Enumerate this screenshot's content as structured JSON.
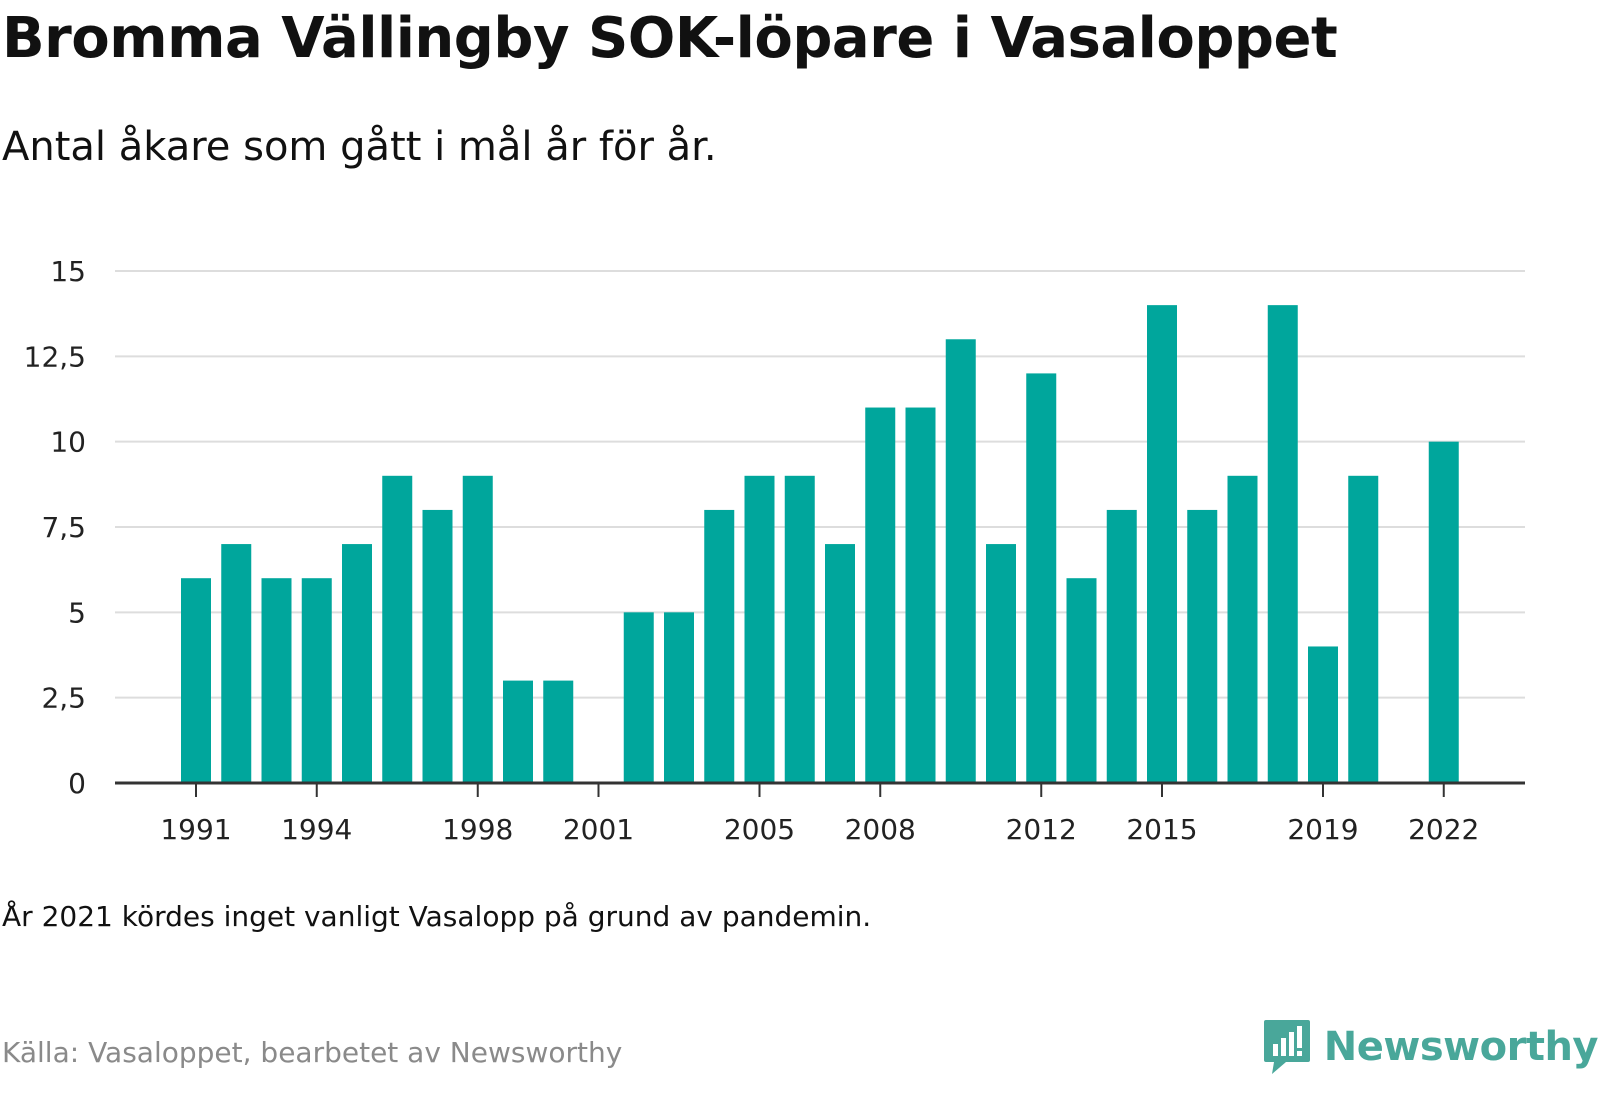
{
  "header": {
    "title": "Bromma Vällingby SOK-löpare i Vasaloppet",
    "subtitle": "Antal åkare som gått i mål år för år."
  },
  "footer": {
    "note": "År 2021 kördes inget vanligt Vasalopp på grund av pandemin.",
    "source": "Källa: Vasaloppet, bearbetet av Newsworthy",
    "brand": "Newsworthy",
    "brand_icon": "newsworthy-logo-icon"
  },
  "colors": {
    "bar": "#00a69c",
    "grid": "#dddddd",
    "axis": "#333333",
    "brand": "#49a79a"
  },
  "chart_data": {
    "type": "bar",
    "categories": [
      "1991",
      "1992",
      "1993",
      "1994",
      "1995",
      "1996",
      "1997",
      "1998",
      "1999",
      "2000",
      "2001",
      "2002",
      "2003",
      "2004",
      "2005",
      "2006",
      "2007",
      "2008",
      "2009",
      "2010",
      "2011",
      "2012",
      "2013",
      "2014",
      "2015",
      "2016",
      "2017",
      "2018",
      "2019",
      "2020",
      "2021",
      "2022"
    ],
    "values": [
      6,
      7,
      6,
      6,
      7,
      9,
      8,
      9,
      3,
      3,
      0,
      5,
      5,
      8,
      9,
      9,
      7,
      11,
      11,
      13,
      7,
      12,
      6,
      8,
      14,
      8,
      9,
      14,
      4,
      9,
      0,
      10
    ],
    "x_tick_labels": [
      "1991",
      "1994",
      "1998",
      "2001",
      "2005",
      "2008",
      "2012",
      "2015",
      "2019",
      "2022"
    ],
    "y_ticks": [
      "0",
      "2,5",
      "5",
      "7,5",
      "10",
      "12,5",
      "15"
    ],
    "ylim": [
      0,
      15
    ],
    "grid": true,
    "legend": "none"
  }
}
